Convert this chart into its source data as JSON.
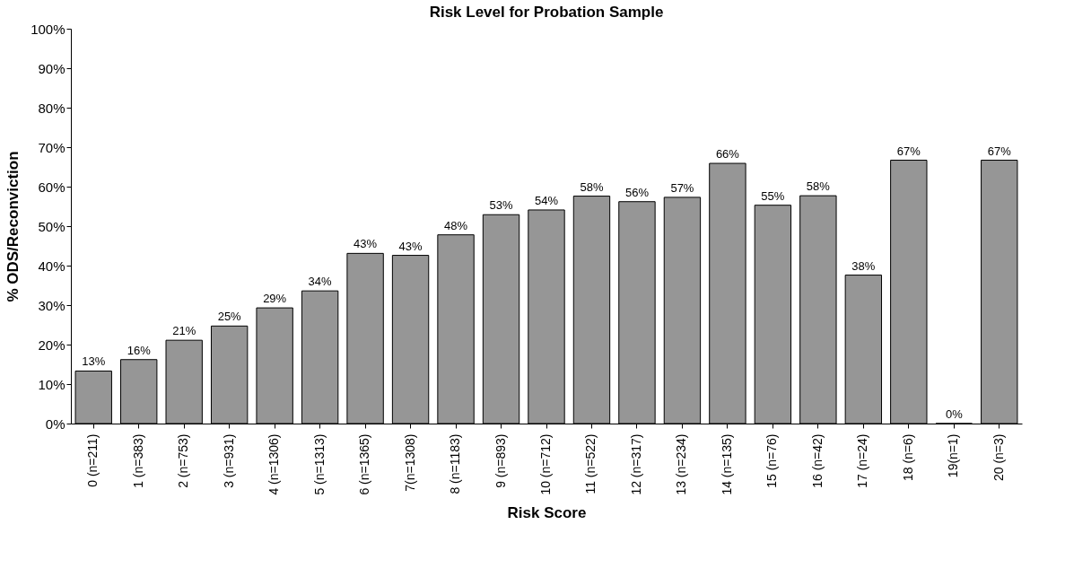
{
  "chart_data": {
    "type": "bar",
    "title": "Risk Level for Probation Sample",
    "xlabel": "Risk Score",
    "ylabel": "% ODS/Reconviction",
    "categories": [
      "0 (n=211)",
      "1 (n=383)",
      "2 (n=753)",
      "3 (n=931)",
      "4 (n=1306)",
      "5 (n=1313)",
      "6 (n=1365)",
      "7(n=1308)",
      "8 (n=1183)",
      "9 (n=893)",
      "10 (n=712)",
      "11 (n=522)",
      "12 (n=317)",
      "13 (n=234)",
      "14 (n=135)",
      "15 (n=76)",
      "16 (n=42)",
      "17 (n=24)",
      "18 (n=6)",
      "19(n=1)",
      "20 (n=3)"
    ],
    "values": [
      13.3,
      16.2,
      21.1,
      24.7,
      29.3,
      33.6,
      43.1,
      42.6,
      47.8,
      52.9,
      54.1,
      57.6,
      56.2,
      57.3,
      65.9,
      55.3,
      57.7,
      37.6,
      66.7,
      0,
      66.7
    ],
    "value_labels": [
      "13%",
      "16%",
      "21%",
      "25%",
      "29%",
      "34%",
      "43%",
      "43%",
      "48%",
      "53%",
      "54%",
      "58%",
      "56%",
      "57%",
      "66%",
      "55%",
      "58%",
      "38%",
      "67%",
      "0%",
      "67%"
    ],
    "color": "#969696",
    "ylim": [
      0,
      100
    ],
    "yticks": [
      {
        "value": 0,
        "label": "0%"
      },
      {
        "value": 10,
        "label": "10%"
      },
      {
        "value": 20,
        "label": "20%"
      },
      {
        "value": 30,
        "label": "30%"
      },
      {
        "value": 40,
        "label": "40%"
      },
      {
        "value": 50,
        "label": "50%"
      },
      {
        "value": 60,
        "label": "60%"
      },
      {
        "value": 70,
        "label": "70%"
      },
      {
        "value": 80,
        "label": "80%"
      },
      {
        "value": 90,
        "label": "90%"
      },
      {
        "value": 100,
        "label": "100%"
      }
    ],
    "grid": false
  }
}
